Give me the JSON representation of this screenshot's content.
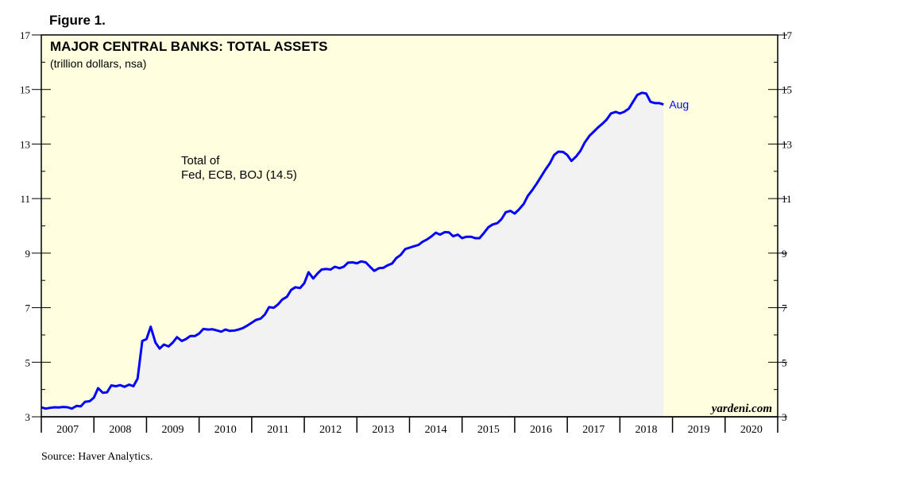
{
  "figure_label": "Figure 1.",
  "source": "Source: Haver Analytics.",
  "watermark": "yardeni.com",
  "colors": {
    "plot_background": "#ffffe0",
    "area_fill": "#f2f2f2",
    "line": "#0000ff",
    "axis": "#000000"
  },
  "chart_data": {
    "type": "area",
    "title": "MAJOR CENTRAL BANKS: TOTAL ASSETS",
    "subtitle": "(trillion dollars, nsa)",
    "annotation_lines": [
      "Total of",
      "Fed, ECB, BOJ (14.5)"
    ],
    "end_label": "Aug",
    "xlabel": "",
    "ylabel": "",
    "ylim": [
      3,
      17
    ],
    "y_ticks_labeled": [
      3,
      5,
      7,
      9,
      11,
      13,
      15,
      17
    ],
    "xlim": [
      2007.0,
      2021.0
    ],
    "x_tick_labels": [
      "2007",
      "2008",
      "2009",
      "2010",
      "2011",
      "2012",
      "2013",
      "2014",
      "2015",
      "2016",
      "2017",
      "2018",
      "2019",
      "2020"
    ],
    "series": [
      {
        "name": "Total of Fed, ECB, BOJ",
        "points": [
          [
            2007.0,
            3.35
          ],
          [
            2007.08,
            3.3
          ],
          [
            2007.17,
            3.33
          ],
          [
            2007.25,
            3.35
          ],
          [
            2007.33,
            3.34
          ],
          [
            2007.42,
            3.36
          ],
          [
            2007.5,
            3.35
          ],
          [
            2007.58,
            3.3
          ],
          [
            2007.67,
            3.4
          ],
          [
            2007.75,
            3.38
          ],
          [
            2007.83,
            3.55
          ],
          [
            2007.92,
            3.57
          ],
          [
            2008.0,
            3.7
          ],
          [
            2008.08,
            4.05
          ],
          [
            2008.17,
            3.88
          ],
          [
            2008.25,
            3.9
          ],
          [
            2008.33,
            4.15
          ],
          [
            2008.42,
            4.12
          ],
          [
            2008.5,
            4.16
          ],
          [
            2008.58,
            4.1
          ],
          [
            2008.67,
            4.18
          ],
          [
            2008.75,
            4.12
          ],
          [
            2008.83,
            4.4
          ],
          [
            2008.92,
            5.78
          ],
          [
            2009.0,
            5.85
          ],
          [
            2009.08,
            6.3
          ],
          [
            2009.17,
            5.72
          ],
          [
            2009.25,
            5.5
          ],
          [
            2009.33,
            5.65
          ],
          [
            2009.42,
            5.58
          ],
          [
            2009.5,
            5.72
          ],
          [
            2009.58,
            5.92
          ],
          [
            2009.67,
            5.78
          ],
          [
            2009.75,
            5.85
          ],
          [
            2009.83,
            5.96
          ],
          [
            2009.92,
            5.96
          ],
          [
            2010.0,
            6.05
          ],
          [
            2010.08,
            6.22
          ],
          [
            2010.17,
            6.2
          ],
          [
            2010.25,
            6.21
          ],
          [
            2010.33,
            6.17
          ],
          [
            2010.42,
            6.12
          ],
          [
            2010.5,
            6.2
          ],
          [
            2010.58,
            6.15
          ],
          [
            2010.67,
            6.16
          ],
          [
            2010.75,
            6.2
          ],
          [
            2010.83,
            6.25
          ],
          [
            2010.92,
            6.35
          ],
          [
            2011.0,
            6.45
          ],
          [
            2011.08,
            6.55
          ],
          [
            2011.17,
            6.6
          ],
          [
            2011.25,
            6.75
          ],
          [
            2011.33,
            7.02
          ],
          [
            2011.42,
            7.0
          ],
          [
            2011.5,
            7.12
          ],
          [
            2011.58,
            7.3
          ],
          [
            2011.67,
            7.4
          ],
          [
            2011.75,
            7.65
          ],
          [
            2011.83,
            7.75
          ],
          [
            2011.92,
            7.72
          ],
          [
            2012.0,
            7.9
          ],
          [
            2012.08,
            8.3
          ],
          [
            2012.17,
            8.07
          ],
          [
            2012.25,
            8.25
          ],
          [
            2012.33,
            8.4
          ],
          [
            2012.42,
            8.42
          ],
          [
            2012.5,
            8.4
          ],
          [
            2012.58,
            8.5
          ],
          [
            2012.67,
            8.45
          ],
          [
            2012.75,
            8.5
          ],
          [
            2012.83,
            8.65
          ],
          [
            2012.92,
            8.66
          ],
          [
            2013.0,
            8.63
          ],
          [
            2013.08,
            8.7
          ],
          [
            2013.17,
            8.66
          ],
          [
            2013.25,
            8.5
          ],
          [
            2013.33,
            8.35
          ],
          [
            2013.42,
            8.45
          ],
          [
            2013.5,
            8.46
          ],
          [
            2013.58,
            8.55
          ],
          [
            2013.67,
            8.62
          ],
          [
            2013.75,
            8.82
          ],
          [
            2013.83,
            8.93
          ],
          [
            2013.92,
            9.15
          ],
          [
            2014.0,
            9.2
          ],
          [
            2014.08,
            9.25
          ],
          [
            2014.17,
            9.3
          ],
          [
            2014.25,
            9.42
          ],
          [
            2014.33,
            9.5
          ],
          [
            2014.42,
            9.62
          ],
          [
            2014.5,
            9.75
          ],
          [
            2014.58,
            9.68
          ],
          [
            2014.67,
            9.77
          ],
          [
            2014.75,
            9.76
          ],
          [
            2014.83,
            9.62
          ],
          [
            2014.92,
            9.68
          ],
          [
            2015.0,
            9.55
          ],
          [
            2015.08,
            9.6
          ],
          [
            2015.17,
            9.6
          ],
          [
            2015.25,
            9.55
          ],
          [
            2015.33,
            9.55
          ],
          [
            2015.42,
            9.75
          ],
          [
            2015.5,
            9.95
          ],
          [
            2015.58,
            10.05
          ],
          [
            2015.67,
            10.1
          ],
          [
            2015.75,
            10.25
          ],
          [
            2015.83,
            10.5
          ],
          [
            2015.92,
            10.55
          ],
          [
            2016.0,
            10.45
          ],
          [
            2016.08,
            10.6
          ],
          [
            2016.17,
            10.8
          ],
          [
            2016.25,
            11.1
          ],
          [
            2016.33,
            11.3
          ],
          [
            2016.42,
            11.55
          ],
          [
            2016.5,
            11.8
          ],
          [
            2016.58,
            12.05
          ],
          [
            2016.67,
            12.3
          ],
          [
            2016.75,
            12.6
          ],
          [
            2016.83,
            12.72
          ],
          [
            2016.92,
            12.71
          ],
          [
            2017.0,
            12.6
          ],
          [
            2017.08,
            12.38
          ],
          [
            2017.17,
            12.55
          ],
          [
            2017.25,
            12.75
          ],
          [
            2017.33,
            13.05
          ],
          [
            2017.42,
            13.3
          ],
          [
            2017.5,
            13.45
          ],
          [
            2017.58,
            13.6
          ],
          [
            2017.67,
            13.75
          ],
          [
            2017.75,
            13.9
          ],
          [
            2017.83,
            14.12
          ],
          [
            2017.92,
            14.18
          ],
          [
            2018.0,
            14.12
          ],
          [
            2018.08,
            14.18
          ],
          [
            2018.17,
            14.3
          ],
          [
            2018.25,
            14.55
          ],
          [
            2018.33,
            14.8
          ],
          [
            2018.42,
            14.88
          ],
          [
            2018.5,
            14.85
          ],
          [
            2018.58,
            14.55
          ],
          [
            2018.67,
            14.5
          ],
          [
            2018.75,
            14.5
          ],
          [
            2018.83,
            14.45
          ]
        ]
      }
    ]
  }
}
